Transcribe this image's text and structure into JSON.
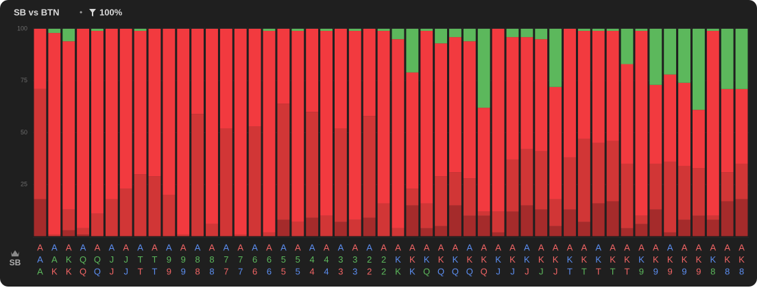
{
  "chart_data": {
    "type": "stacked_bar",
    "title": "SB vs BTN",
    "filter": "100%",
    "player_label": "SB",
    "ylim": [
      0,
      100
    ],
    "yticks": [
      25,
      50,
      75,
      100
    ],
    "grid": true,
    "categories": [
      [
        "A",
        "A",
        "A"
      ],
      [
        "A",
        "A",
        "K"
      ],
      [
        "A",
        "K",
        "K"
      ],
      [
        "A",
        "Q",
        "Q"
      ],
      [
        "A",
        "Q",
        "Q"
      ],
      [
        "A",
        "J",
        "J"
      ],
      [
        "A",
        "J",
        "J"
      ],
      [
        "A",
        "T",
        "T"
      ],
      [
        "A",
        "T",
        "T"
      ],
      [
        "A",
        "9",
        "9"
      ],
      [
        "A",
        "9",
        "9"
      ],
      [
        "A",
        "8",
        "8"
      ],
      [
        "A",
        "8",
        "8"
      ],
      [
        "A",
        "7",
        "7"
      ],
      [
        "A",
        "7",
        "7"
      ],
      [
        "A",
        "6",
        "6"
      ],
      [
        "A",
        "6",
        "6"
      ],
      [
        "A",
        "5",
        "5"
      ],
      [
        "A",
        "5",
        "5"
      ],
      [
        "A",
        "4",
        "4"
      ],
      [
        "A",
        "4",
        "4"
      ],
      [
        "A",
        "3",
        "3"
      ],
      [
        "A",
        "3",
        "3"
      ],
      [
        "A",
        "2",
        "2"
      ],
      [
        "A",
        "2",
        "2"
      ],
      [
        "A",
        "K",
        "K"
      ],
      [
        "A",
        "K",
        "K"
      ],
      [
        "A",
        "K",
        "Q"
      ],
      [
        "A",
        "K",
        "Q"
      ],
      [
        "A",
        "K",
        "Q"
      ],
      [
        "A",
        "K",
        "Q"
      ],
      [
        "A",
        "K",
        "Q"
      ],
      [
        "A",
        "K",
        "J"
      ],
      [
        "A",
        "K",
        "J"
      ],
      [
        "A",
        "K",
        "J"
      ],
      [
        "A",
        "K",
        "J"
      ],
      [
        "A",
        "K",
        "J"
      ],
      [
        "A",
        "K",
        "T"
      ],
      [
        "A",
        "K",
        "T"
      ],
      [
        "A",
        "K",
        "T"
      ],
      [
        "A",
        "K",
        "T"
      ],
      [
        "A",
        "K",
        "T"
      ],
      [
        "A",
        "K",
        "9"
      ],
      [
        "A",
        "K",
        "9"
      ],
      [
        "A",
        "K",
        "9"
      ],
      [
        "A",
        "K",
        "9"
      ],
      [
        "A",
        "K",
        "9"
      ],
      [
        "A",
        "K",
        "8"
      ],
      [
        "A",
        "K",
        "8"
      ],
      [
        "A",
        "K",
        "8"
      ]
    ],
    "suits": [
      "rbg",
      "bgr",
      "rgr",
      "bgr",
      "rgb",
      "bgr",
      "rgb",
      "bgr",
      "rgb",
      "bgr",
      "rgb",
      "bgr",
      "rgb",
      "bgr",
      "rgb",
      "bgr",
      "rgb",
      "bgr",
      "rgb",
      "bgr",
      "rgb",
      "bgr",
      "rgb",
      "bgr",
      "rgg",
      "rbg",
      "rrb",
      "rbg",
      "rrb",
      "rbb",
      "brb",
      "rrr",
      "rbb",
      "rrb",
      "bbr",
      "rrg",
      "rrr",
      "rbb",
      "rrg",
      "bbr",
      "rrg",
      "rrr",
      "rbg",
      "rrb",
      "brr",
      "rrb",
      "rrr",
      "rbg",
      "rrb",
      "rrb"
    ],
    "suit_colors": {
      "r": "#f06464",
      "b": "#5b8def",
      "g": "#5cb85c"
    },
    "series": [
      {
        "color": "#a52b2b",
        "values": [
          18,
          0,
          3,
          1,
          0,
          0,
          0,
          0,
          0,
          0,
          0,
          0,
          0,
          0,
          0,
          0,
          0,
          8,
          0,
          9,
          0,
          7,
          0,
          9,
          0,
          0,
          15,
          4,
          5,
          15,
          10,
          10,
          2,
          12,
          15,
          13,
          5,
          13,
          7,
          16,
          17,
          4,
          6,
          13,
          2,
          8,
          10,
          8,
          17,
          18
        ]
      },
      {
        "color": "#d13636",
        "values": [
          53,
          1,
          10,
          3,
          11,
          18,
          23,
          30,
          29,
          20,
          1,
          59,
          6,
          52,
          1,
          53,
          2,
          56,
          7,
          51,
          10,
          45,
          8,
          49,
          16,
          4,
          8,
          12,
          24,
          16,
          18,
          2,
          10,
          25,
          27,
          28,
          13,
          25,
          40,
          29,
          29,
          31,
          4,
          22,
          34,
          26,
          23,
          2,
          14,
          17
        ]
      },
      {
        "color": "#f23a3f",
        "values": [
          29,
          97,
          81,
          96,
          88,
          82,
          77,
          69,
          71,
          80,
          99,
          41,
          94,
          48,
          99,
          47,
          97,
          36,
          92,
          40,
          89,
          48,
          91,
          42,
          83,
          91,
          56,
          83,
          64,
          65,
          66,
          50,
          88,
          59,
          54,
          54,
          54,
          62,
          52,
          54,
          53,
          48,
          89,
          38,
          42,
          40,
          28,
          89,
          40,
          36
        ]
      },
      {
        "color": "#5cb85c",
        "values": [
          0,
          2,
          6,
          0,
          1,
          0,
          0,
          1,
          0,
          0,
          0,
          0,
          0,
          0,
          0,
          0,
          1,
          0,
          1,
          0,
          1,
          0,
          1,
          0,
          1,
          5,
          21,
          1,
          7,
          4,
          6,
          38,
          0,
          4,
          4,
          5,
          28,
          0,
          1,
          1,
          1,
          17,
          1,
          27,
          22,
          26,
          39,
          1,
          29,
          29
        ]
      }
    ]
  }
}
